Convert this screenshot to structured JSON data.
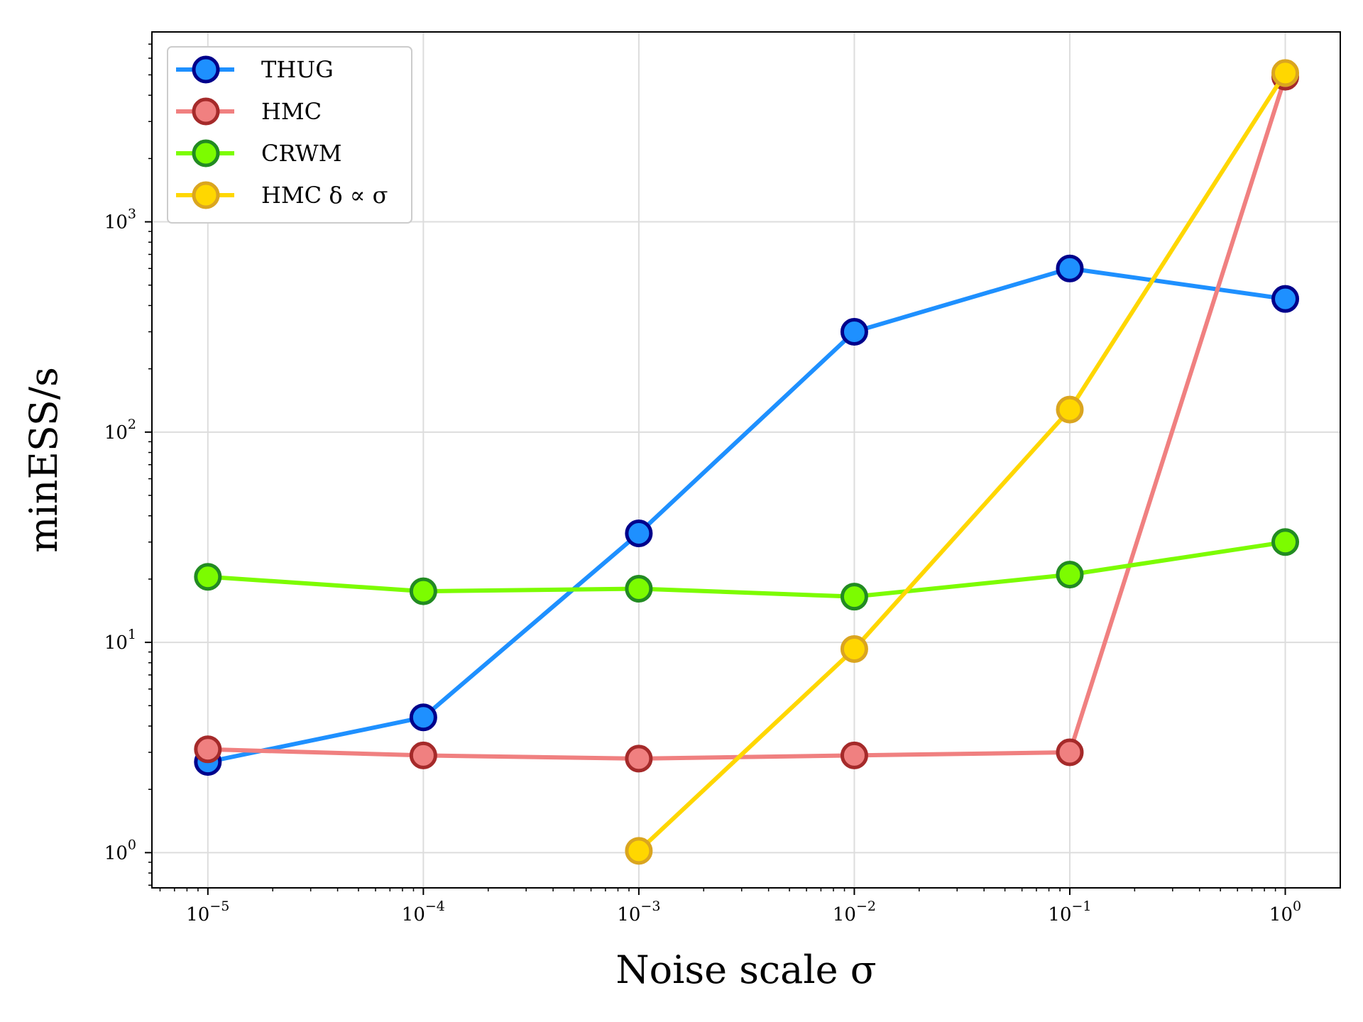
{
  "chart_data": {
    "type": "line",
    "x_scale": "log",
    "y_scale": "log",
    "xlabel": "Noise scale σ",
    "ylabel": "minESS/s",
    "xlim": [
      5.5e-06,
      1.8
    ],
    "ylim": [
      0.68,
      8000
    ],
    "grid": true,
    "legend_position": "top-left",
    "x_ticks": [
      {
        "value": 1e-05,
        "base": "10",
        "exp": "−5"
      },
      {
        "value": 0.0001,
        "base": "10",
        "exp": "−4"
      },
      {
        "value": 0.001,
        "base": "10",
        "exp": "−3"
      },
      {
        "value": 0.01,
        "base": "10",
        "exp": "−2"
      },
      {
        "value": 0.1,
        "base": "10",
        "exp": "−1"
      },
      {
        "value": 1,
        "base": "10",
        "exp": "0"
      }
    ],
    "y_ticks": [
      {
        "value": 1,
        "base": "10",
        "exp": "0"
      },
      {
        "value": 10,
        "base": "10",
        "exp": "1"
      },
      {
        "value": 100,
        "base": "10",
        "exp": "2"
      },
      {
        "value": 1000,
        "base": "10",
        "exp": "3"
      }
    ],
    "series": [
      {
        "name": "THUG",
        "line_color": "#1e90ff",
        "marker_fill": "#1e90ff",
        "marker_edge": "#00008b",
        "x": [
          1e-05,
          0.0001,
          0.001,
          0.01,
          0.1,
          1
        ],
        "y": [
          2.7,
          4.4,
          33,
          300,
          600,
          430
        ]
      },
      {
        "name": "HMC",
        "line_color": "#f08080",
        "marker_fill": "#f08080",
        "marker_edge": "#a52a2a",
        "x": [
          1e-05,
          0.0001,
          0.001,
          0.01,
          0.1,
          1
        ],
        "y": [
          3.1,
          2.9,
          2.8,
          2.9,
          3.0,
          4900
        ]
      },
      {
        "name": "CRWM",
        "line_color": "#7cfc00",
        "marker_fill": "#7cfc00",
        "marker_edge": "#228b22",
        "x": [
          1e-05,
          0.0001,
          0.001,
          0.01,
          0.1,
          1
        ],
        "y": [
          20.5,
          17.5,
          18,
          16.5,
          21,
          30
        ]
      },
      {
        "name": "HMC δ ∝ σ",
        "line_color": "#ffd700",
        "marker_fill": "#ffd700",
        "marker_edge": "#daa520",
        "x": [
          0.001,
          0.01,
          0.1,
          1
        ],
        "y": [
          1.02,
          9.3,
          128,
          5100
        ]
      }
    ]
  }
}
